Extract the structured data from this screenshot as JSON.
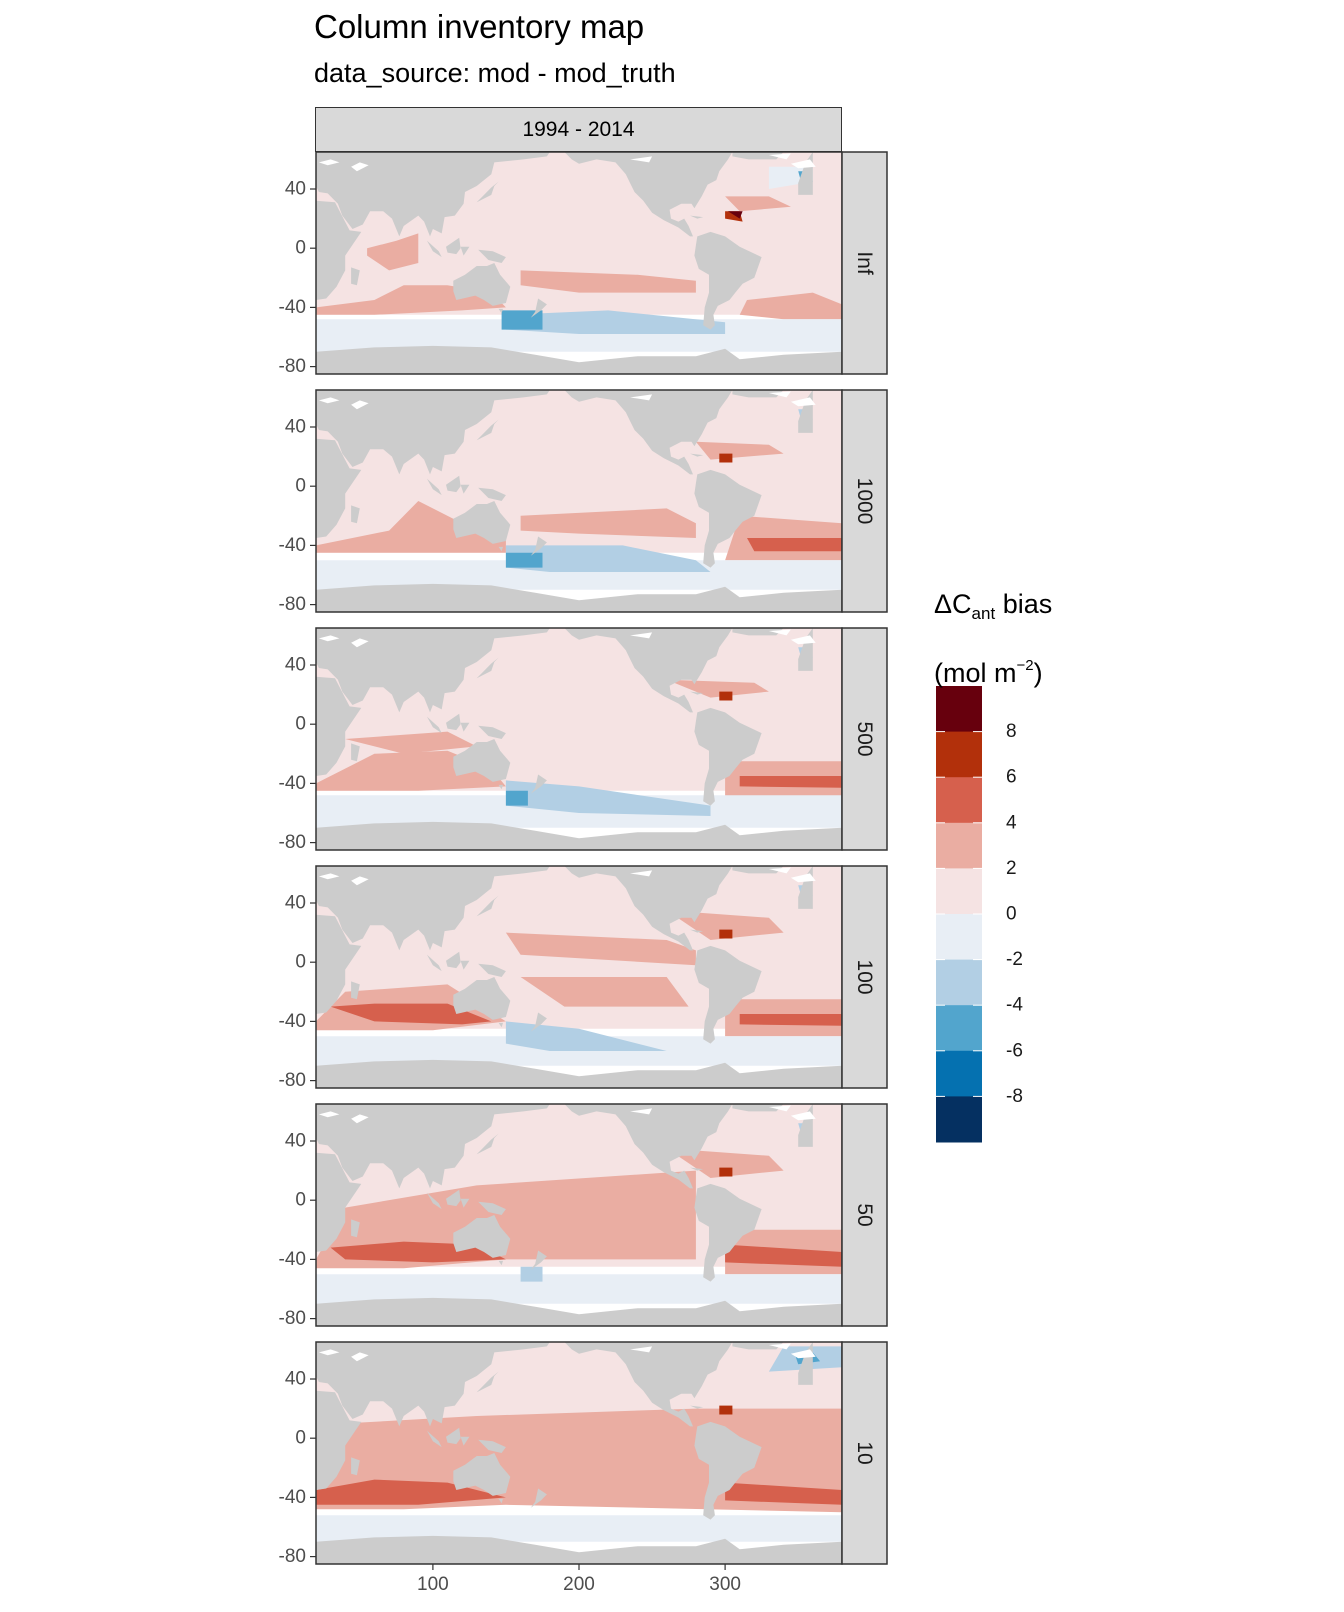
{
  "title": "Column inventory map",
  "subtitle": "data_source: mod - mod_truth",
  "facet_top": "1994 - 2014",
  "legend": {
    "title_main": "ΔC",
    "title_sub": "ant",
    "title_rest": " bias",
    "unit_open": "(mol m",
    "unit_sup": "−2",
    "unit_close": ")",
    "breaks": [
      "8",
      "6",
      "4",
      "2",
      "0",
      "-2",
      "-4",
      "-6",
      "-8"
    ],
    "colors": [
      "#67000d",
      "#b2300b",
      "#d6604d",
      "#eaada2",
      "#f5e3e3",
      "#e8eef5",
      "#b2cfe4",
      "#52a5cd",
      "#0571b0",
      "#053061"
    ],
    "land_color": "#cccccc"
  },
  "chart_data": {
    "type": "heatmap",
    "title": "Column inventory map",
    "subtitle": "data_source: mod - mod_truth",
    "column_facet": "1994 - 2014",
    "row_facets": [
      "Inf",
      "1000",
      "500",
      "100",
      "50",
      "10"
    ],
    "x_ticks": [
      100,
      200,
      300
    ],
    "y_ticks": [
      40,
      0,
      -40,
      -80
    ],
    "xlim": [
      20,
      380
    ],
    "ylim": [
      -85,
      65
    ],
    "fill_breaks": [
      -8,
      -6,
      -4,
      -2,
      0,
      2,
      4,
      6,
      8
    ],
    "fill_label": "ΔCant bias (mol m−2)"
  }
}
